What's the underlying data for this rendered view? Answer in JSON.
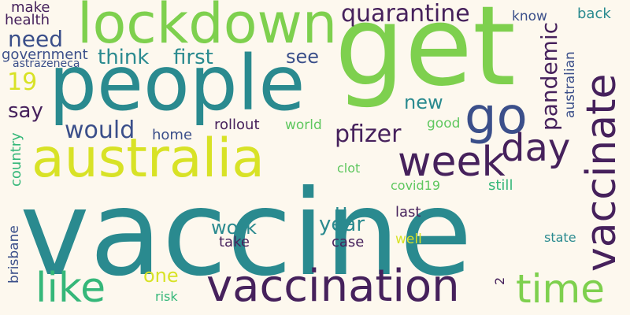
{
  "colors": {
    "background": "#fdf8ee",
    "teal": "#2a8a8f",
    "purple": "#46215c",
    "green": "#7ed04e",
    "yellowgreen": "#d8e226",
    "mint": "#35b779",
    "navy": "#3b4f8a",
    "lightgreen": "#5fc75f"
  },
  "words": {
    "vaccine": "vaccine",
    "get": "get",
    "people": "people",
    "lockdown": "lockdown",
    "australia": "australia",
    "vaccination": "vaccination",
    "vaccinate": "vaccinate",
    "go": "go",
    "week": "week",
    "day": "day",
    "time": "time",
    "like": "like",
    "quarantine": "quarantine",
    "need": "need",
    "pandemic": "pandemic",
    "nineteen": "19",
    "think": "think",
    "first": "first",
    "see": "see",
    "say": "say",
    "would": "would",
    "new": "new",
    "pfizer": "pfizer",
    "home": "home",
    "rollout": "rollout",
    "world": "world",
    "good": "good",
    "australian": "australian",
    "know": "know",
    "back": "back",
    "make": "make",
    "health": "health",
    "government": "government",
    "astrazeneca": "astrazeneca",
    "country": "country",
    "clot": "clot",
    "covid19": "covid19",
    "still": "still",
    "u": "u",
    "last": "last",
    "work": "work",
    "year": "year",
    "take": "take",
    "case": "case",
    "well": "well",
    "state": "state",
    "brisbane": "brisbane",
    "one": "one",
    "risk": "risk",
    "two": "2"
  }
}
